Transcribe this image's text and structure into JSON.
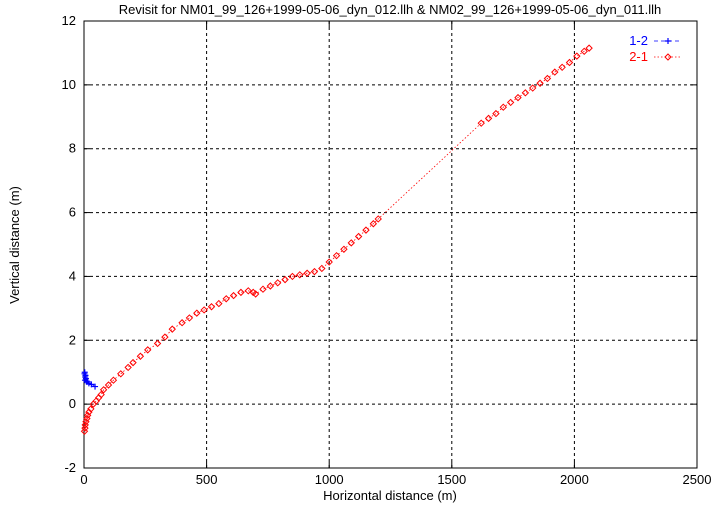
{
  "chart_data": {
    "type": "scatter",
    "title": "Revisit for NM01_99_126+1999-05-06_dyn_012.llh & NM02_99_126+1999-05-06_dyn_011.llh",
    "xlabel": "Horizontal distance (m)",
    "ylabel": "Vertical distance (m)",
    "xlim": [
      0,
      2500
    ],
    "ylim": [
      -2,
      12
    ],
    "xticks": [
      "0",
      "500",
      "1000",
      "1500",
      "2000",
      "2500"
    ],
    "yticks": [
      "-2",
      "0",
      "2",
      "4",
      "6",
      "8",
      "10",
      "12"
    ],
    "grid": true,
    "legend_position": "top-right",
    "series": [
      {
        "name": "1-2",
        "color": "#0000ff",
        "marker": "plus",
        "line": "dashed",
        "x": [
          2,
          3,
          5,
          4,
          6,
          8,
          10,
          15,
          20,
          30,
          45
        ],
        "y": [
          0.95,
          1.0,
          0.85,
          0.75,
          0.9,
          0.8,
          0.7,
          0.7,
          0.65,
          0.62,
          0.55
        ]
      },
      {
        "name": "2-1",
        "color": "#ff0000",
        "marker": "diamond",
        "line": "dotted",
        "x": [
          2,
          4,
          5,
          8,
          12,
          15,
          20,
          28,
          38,
          50,
          60,
          70,
          80,
          100,
          120,
          150,
          180,
          200,
          230,
          260,
          300,
          330,
          360,
          400,
          430,
          460,
          490,
          520,
          550,
          580,
          610,
          640,
          670,
          690,
          700,
          730,
          760,
          790,
          820,
          850,
          880,
          910,
          940,
          970,
          1000,
          1030,
          1060,
          1090,
          1120,
          1150,
          1180,
          1200,
          1620,
          1650,
          1680,
          1710,
          1740,
          1770,
          1800,
          1830,
          1860,
          1890,
          1920,
          1950,
          1980,
          2010,
          2040,
          2060
        ],
        "y": [
          -0.85,
          -0.75,
          -0.65,
          -0.55,
          -0.45,
          -0.35,
          -0.25,
          -0.15,
          0.0,
          0.1,
          0.2,
          0.3,
          0.45,
          0.6,
          0.75,
          0.95,
          1.15,
          1.3,
          1.5,
          1.7,
          1.9,
          2.1,
          2.35,
          2.55,
          2.7,
          2.85,
          2.95,
          3.05,
          3.15,
          3.3,
          3.4,
          3.5,
          3.55,
          3.5,
          3.45,
          3.6,
          3.7,
          3.8,
          3.9,
          4.0,
          4.05,
          4.1,
          4.15,
          4.25,
          4.45,
          4.65,
          4.85,
          5.05,
          5.25,
          5.45,
          5.65,
          5.8,
          8.8,
          8.95,
          9.1,
          9.3,
          9.45,
          9.6,
          9.75,
          9.9,
          10.05,
          10.2,
          10.4,
          10.55,
          10.7,
          10.9,
          11.05,
          11.15
        ]
      }
    ]
  }
}
